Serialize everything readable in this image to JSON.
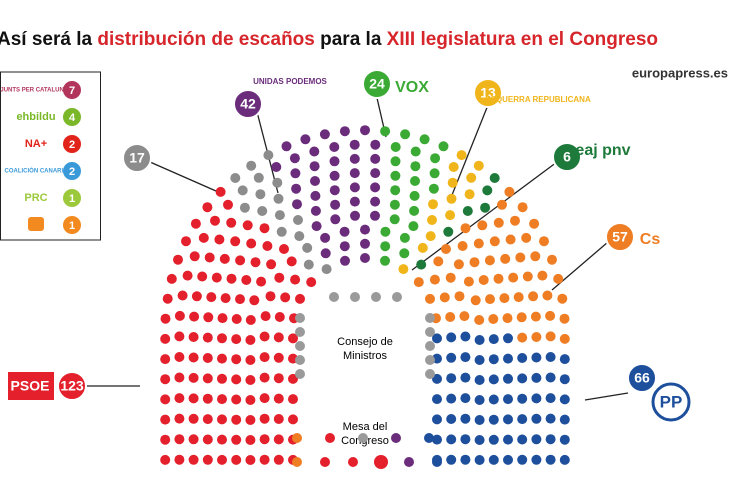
{
  "chart_data": {
    "type": "parliament",
    "title_parts": [
      {
        "text": "Así será la ",
        "color": "#111111"
      },
      {
        "text": "distribución de escaños",
        "color": "#d7262b"
      },
      {
        "text": " para la ",
        "color": "#111111"
      },
      {
        "text": "XIII legislatura en el Congreso",
        "color": "#d7262b"
      }
    ],
    "source": "europapress.es",
    "parties": [
      {
        "name": "PSOE",
        "seats": 123,
        "color": "#e3202c"
      },
      {
        "name": null,
        "seats": 17,
        "color": "#8c8c8c"
      },
      {
        "name": "UNIDAS PODEMOS",
        "seats": 42,
        "color": "#6b2d7b"
      },
      {
        "name": "VOX",
        "seats": 24,
        "color": "#3aaa35"
      },
      {
        "name": "ESQUERRA REPUBLICANA",
        "seats": 13,
        "color": "#f0b51a"
      },
      {
        "name": "eaj pnv",
        "seats": 6,
        "color": "#1e7a3a"
      },
      {
        "name": "Cs",
        "seats": 57,
        "color": "#ef7d23"
      },
      {
        "name": "PP",
        "seats": 66,
        "color": "#1d4f9c"
      }
    ],
    "others": [
      {
        "name": "JUNTS PER CATALUNYA",
        "seats": 7,
        "color": "#b2365c"
      },
      {
        "name": "ehbildu",
        "seats": 4,
        "color": "#7ab829"
      },
      {
        "name": "NA+",
        "seats": 2,
        "color": "#e2231a"
      },
      {
        "name": "COALICIÓN CANARIA",
        "seats": 2,
        "color": "#3a9ad9"
      },
      {
        "name": "PRC",
        "seats": 1,
        "color": "#9cc93b"
      },
      {
        "name": null,
        "seats": 1,
        "color": "#f28a1f"
      }
    ],
    "annotations": [
      "Consejo de Ministros",
      "Mesa del Congreso"
    ]
  }
}
